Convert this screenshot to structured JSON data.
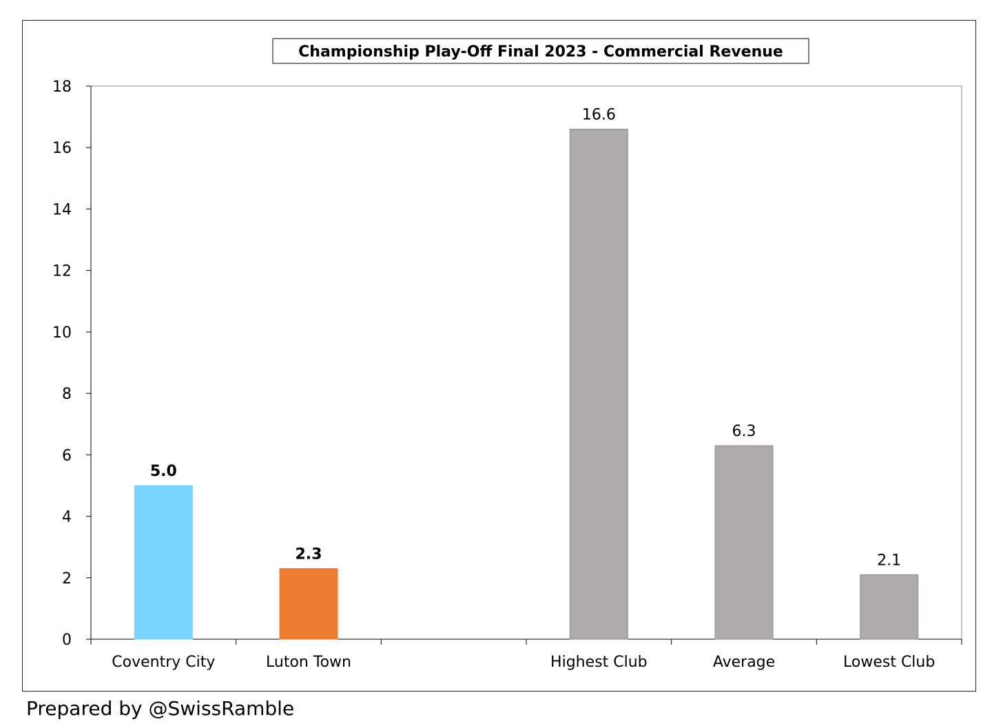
{
  "chart_data": {
    "type": "bar",
    "title": "Championship Play-Off Final 2023 - Commercial Revenue",
    "xlabel": "",
    "ylabel": "",
    "ylim": [
      0,
      18
    ],
    "yticks": [
      0,
      2,
      4,
      6,
      8,
      10,
      12,
      14,
      16,
      18
    ],
    "grid": false,
    "categories": [
      "Coventry City",
      "Luton Town",
      "",
      "Highest Club",
      "Average",
      "Lowest Club"
    ],
    "values": [
      5.0,
      2.3,
      null,
      16.6,
      6.3,
      2.1
    ],
    "labels": [
      "5.0",
      "2.3",
      "",
      "16.6",
      "6.3",
      "2.1"
    ],
    "label_bold": [
      true,
      true,
      false,
      false,
      false,
      false
    ],
    "colors": [
      "#79D5FD",
      "#ED7D31",
      "#ffffff",
      "#AFABAB",
      "#AFABAB",
      "#AFABAB"
    ]
  },
  "footer": "Prepared by @SwissRamble"
}
